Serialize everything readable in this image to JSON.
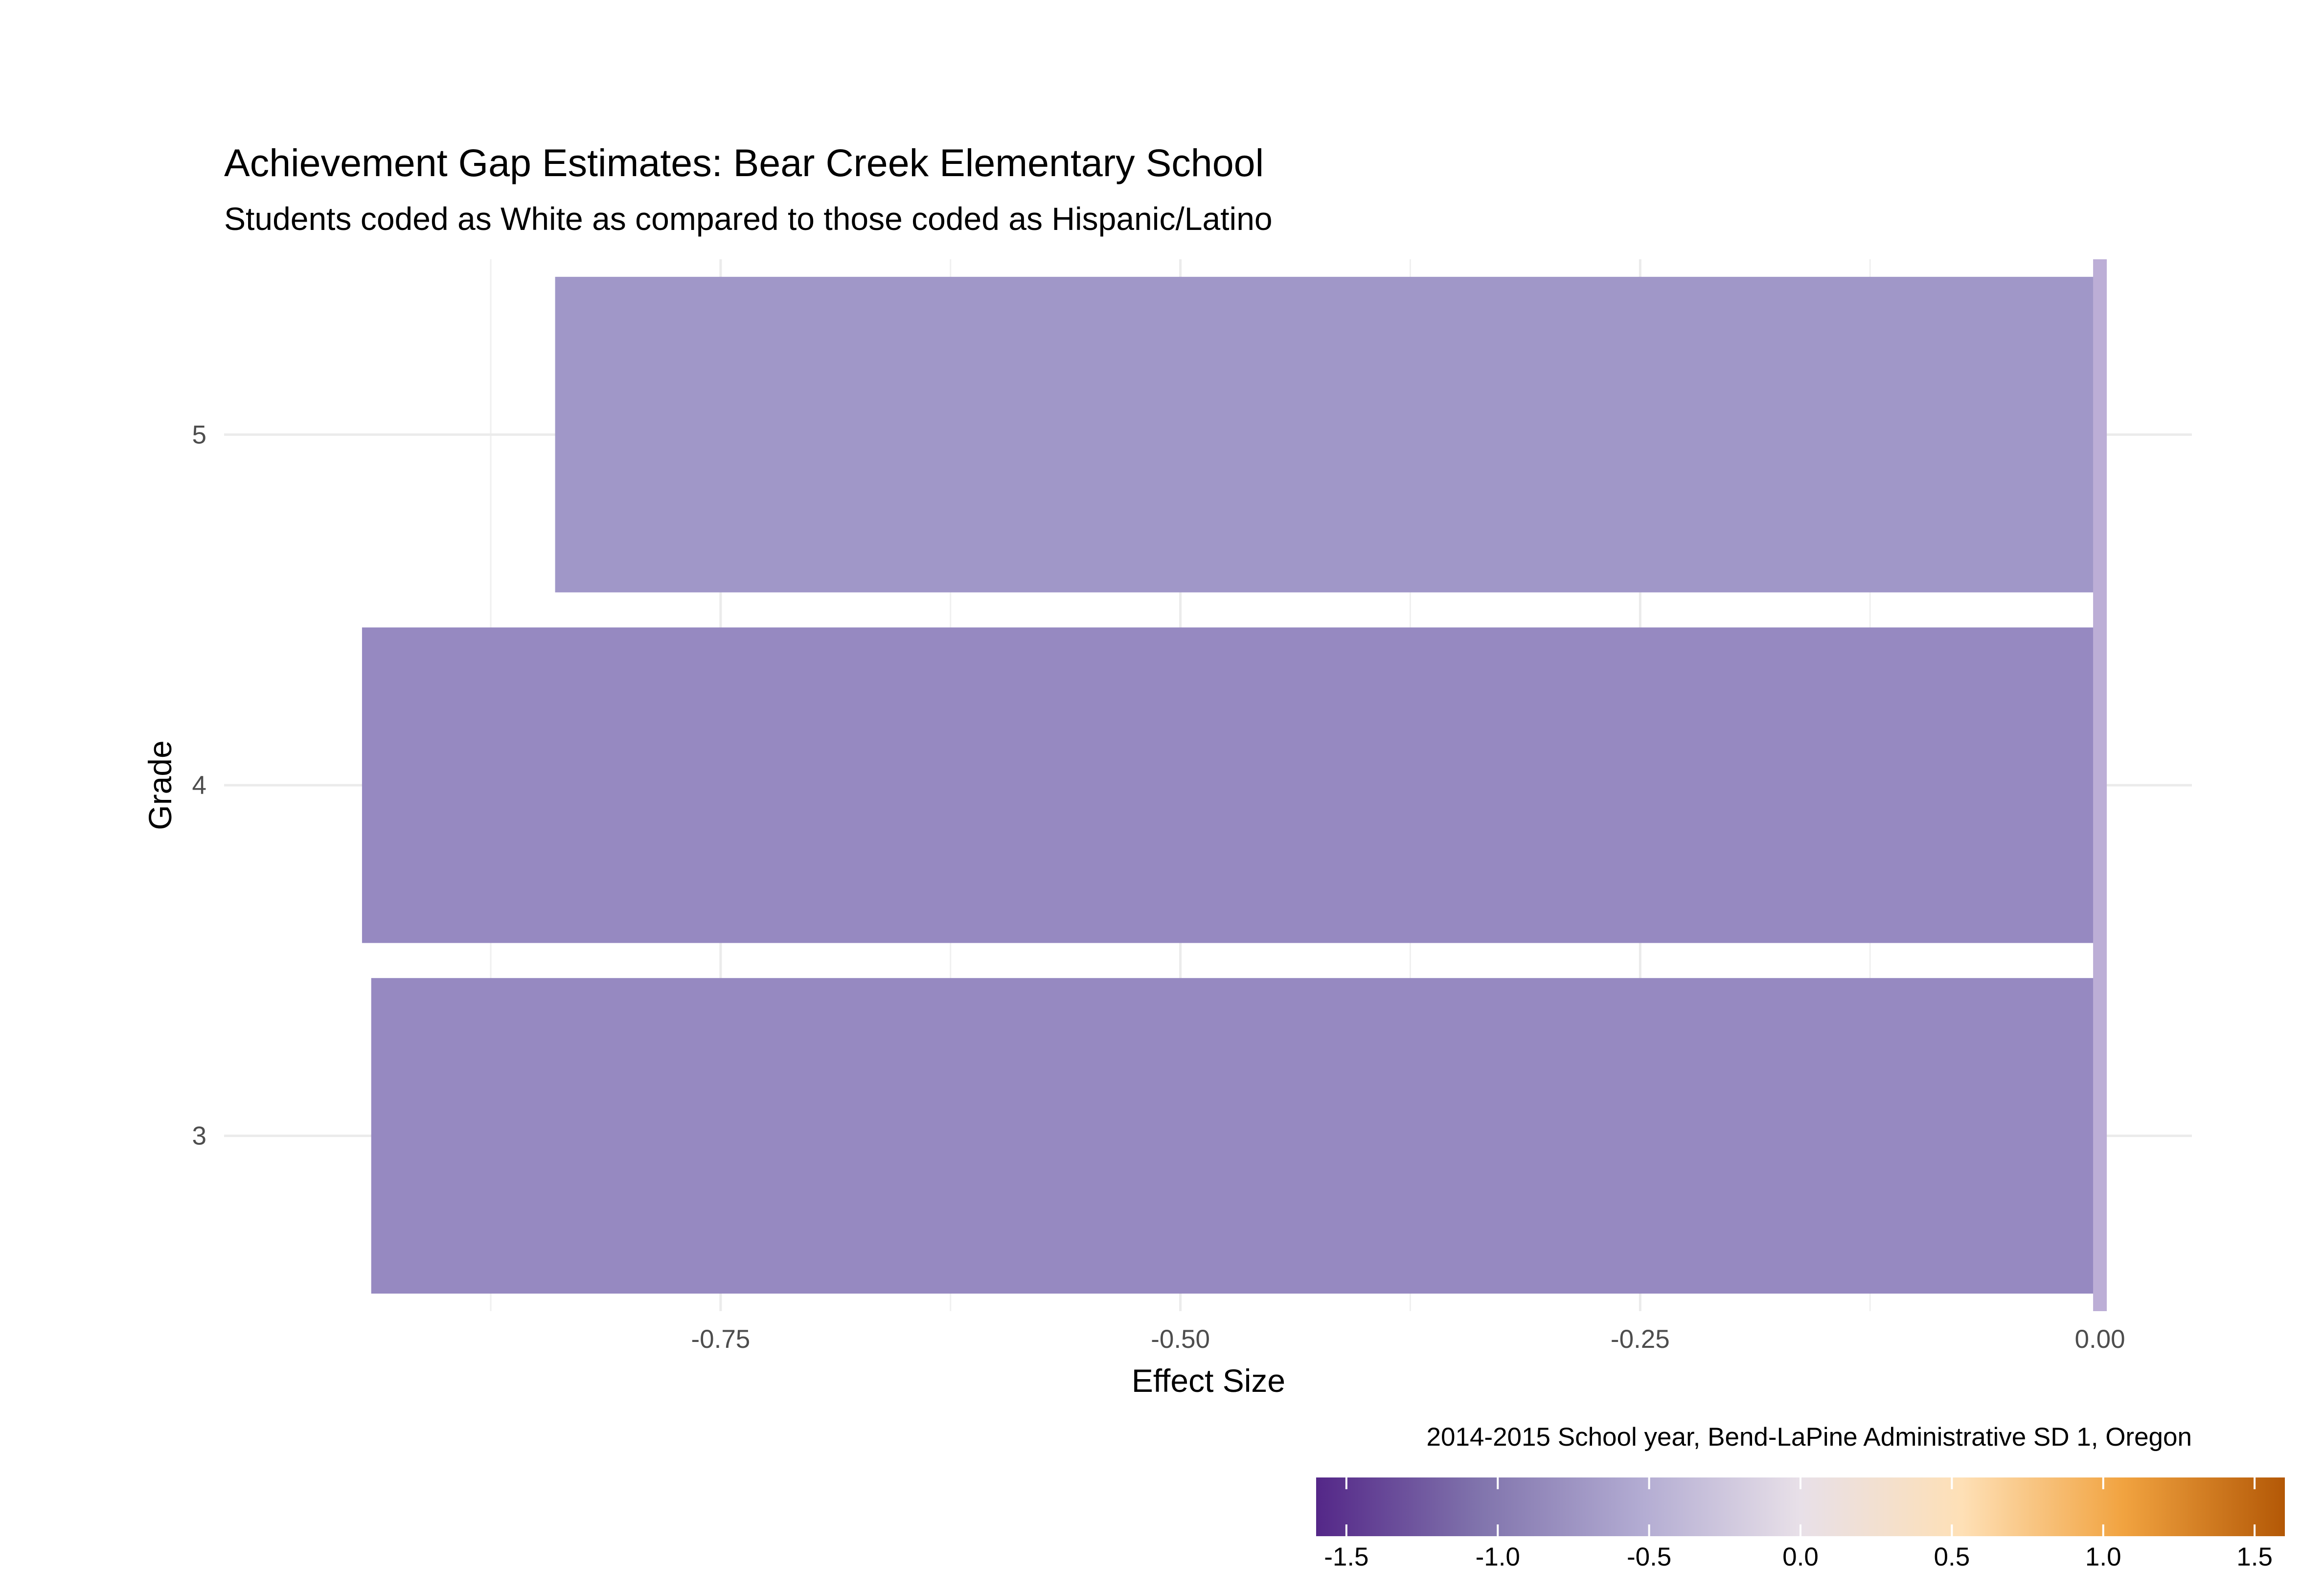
{
  "chart_data": {
    "type": "bar",
    "orientation": "horizontal",
    "title": "Achievement Gap Estimates: Bear Creek Elementary School",
    "subtitle": "Students coded as White as compared to those coded as Hispanic/Latino",
    "xlabel": "Effect Size",
    "ylabel": "Grade",
    "caption": "2014-2015 School year, Bend-LaPine Administrative SD 1, Oregon",
    "categories": [
      "3",
      "4",
      "5"
    ],
    "values": [
      -0.94,
      -0.945,
      -0.84
    ],
    "bar_colors": [
      "#9689c1",
      "#9689c1",
      "#a097c8"
    ],
    "xlim": [
      -1.02,
      0.05
    ],
    "x_ticks": [
      -0.75,
      -0.5,
      -0.25,
      0.0
    ],
    "x_tick_labels": [
      "-0.75",
      "-0.50",
      "-0.25",
      "0.00"
    ],
    "reference_line": {
      "x": 0.0,
      "color": "#bcaed6"
    },
    "grid": true,
    "colorbar": {
      "range": [
        -1.6,
        1.6
      ],
      "ticks": [
        -1.5,
        -1.0,
        -0.5,
        0.0,
        0.5,
        1.0,
        1.5
      ],
      "tick_labels": [
        "-1.5",
        "-1.0",
        "-0.5",
        "0.0",
        "0.5",
        "1.0",
        "1.5"
      ],
      "colors": [
        "#542788",
        "#8073ac",
        "#b2abd2",
        "#e8e0e8",
        "#fee0b6",
        "#f1a340",
        "#b35806"
      ]
    }
  }
}
